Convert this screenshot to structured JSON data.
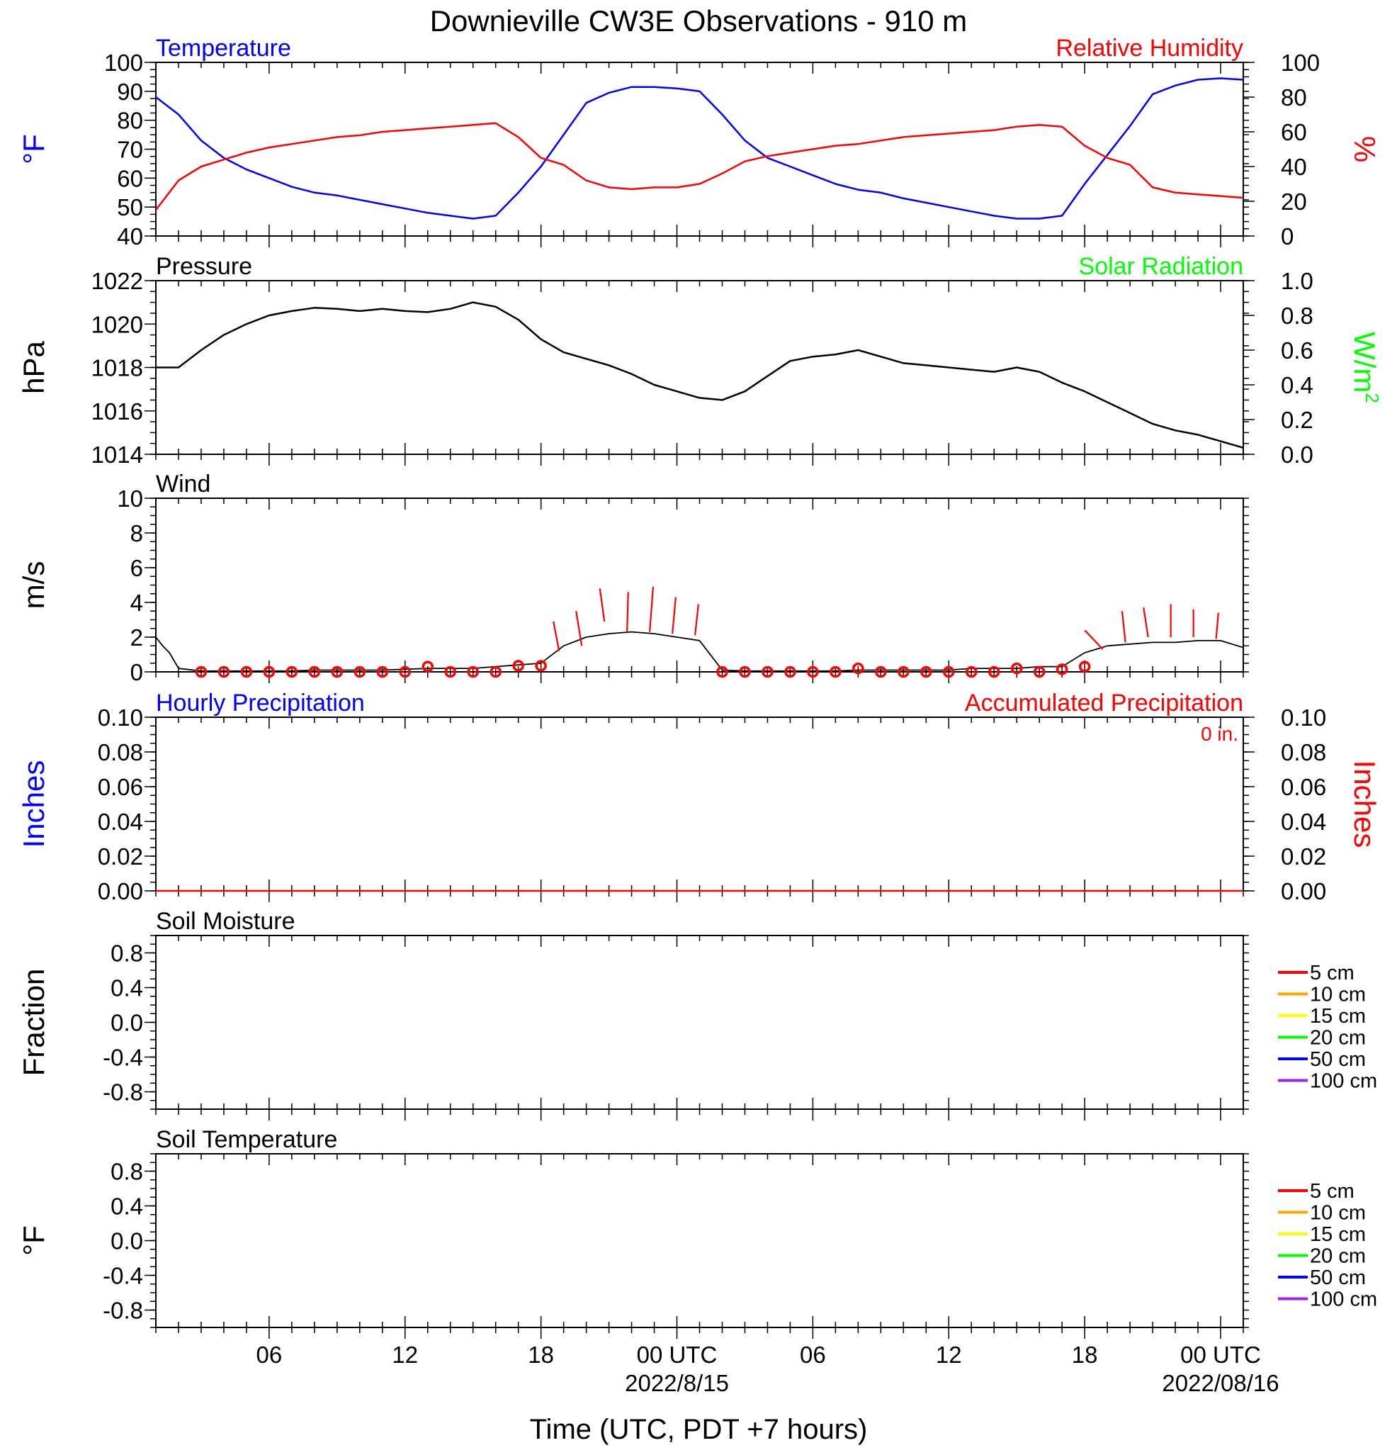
{
  "title": "Downieville CW3E Observations - 910 m",
  "x_axis": {
    "label": "Time (UTC, PDT +7 hours)",
    "range_hours": [
      0,
      48
    ],
    "ticks": [
      {
        "h": 5,
        "label": "06"
      },
      {
        "h": 11,
        "label": "12"
      },
      {
        "h": 17,
        "label": "18"
      },
      {
        "h": 23,
        "label": "00 UTC",
        "sub": "2022/8/15"
      },
      {
        "h": 29,
        "label": "06"
      },
      {
        "h": 35,
        "label": "12"
      },
      {
        "h": 41,
        "label": "18"
      },
      {
        "h": 47,
        "label": "00 UTC",
        "sub": "2022/08/16"
      }
    ]
  },
  "colors": {
    "temperature": "#0000ff",
    "humidity": "#ff0000",
    "solar": "#00ff00",
    "black": "#000000",
    "precip": "#ff0000"
  },
  "chart_data": [
    {
      "type": "line",
      "name": "temperature-humidity",
      "left_title": "Temperature",
      "right_title": "Relative Humidity",
      "ylabel_left": "°F",
      "ylabel_right": "%",
      "ylim_left": [
        40,
        100
      ],
      "ylim_right": [
        0,
        100
      ],
      "yticks_left": [
        "40",
        "50",
        "60",
        "70",
        "80",
        "90",
        "100"
      ],
      "yticks_right": [
        "0",
        "20",
        "40",
        "60",
        "80",
        "100"
      ],
      "series": [
        {
          "axis": "left",
          "color": "#0000ff",
          "x": [
            0,
            1,
            2,
            3,
            4,
            5,
            6,
            7,
            8,
            9,
            10,
            11,
            12,
            13,
            14,
            15,
            16,
            17,
            18,
            19,
            20,
            21,
            22,
            23,
            24,
            25,
            26,
            27,
            28,
            29,
            30,
            31,
            32,
            33,
            34,
            35,
            36,
            37,
            38,
            39,
            40,
            41,
            42,
            43,
            44,
            45,
            46,
            47,
            48
          ],
          "values": [
            88,
            82,
            73,
            67,
            63,
            60,
            57,
            55,
            54,
            52.5,
            51,
            49.5,
            48,
            47,
            46,
            47,
            55,
            64,
            75,
            86,
            89.5,
            91.5,
            91.5,
            91,
            90,
            82,
            73,
            67,
            64,
            61,
            58,
            56,
            55,
            53,
            51.5,
            50,
            48.5,
            47,
            46,
            46,
            47,
            58,
            68,
            78,
            89,
            92,
            94,
            94.5,
            94
          ]
        },
        {
          "axis": "right",
          "color": "#ff0000",
          "x": [
            0,
            1,
            2,
            3,
            4,
            5,
            6,
            7,
            8,
            9,
            10,
            11,
            12,
            13,
            14,
            15,
            16,
            17,
            18,
            19,
            20,
            21,
            22,
            23,
            24,
            25,
            26,
            27,
            28,
            29,
            30,
            31,
            32,
            33,
            34,
            35,
            36,
            37,
            38,
            39,
            40,
            41,
            42,
            43,
            44,
            45,
            46,
            47,
            48
          ],
          "values": [
            15,
            32,
            40,
            44,
            48,
            51,
            53,
            55,
            57,
            58,
            60,
            61,
            62,
            63,
            64,
            65,
            57,
            45,
            41,
            32,
            28,
            27,
            28,
            28,
            30,
            36,
            43,
            46,
            48,
            50,
            52,
            53,
            55,
            57,
            58,
            59,
            60,
            61,
            63,
            64,
            63,
            52,
            45,
            41,
            28,
            25,
            24,
            23,
            22
          ]
        }
      ]
    },
    {
      "type": "line",
      "name": "pressure-solar",
      "left_title": "Pressure",
      "right_title": "Solar Radiation",
      "ylabel_left": "hPa",
      "ylabel_right": "W/m",
      "ylabel_right_sup": "2",
      "ylim_left": [
        1014,
        1022
      ],
      "ylim_right": [
        0,
        1
      ],
      "yticks_left": [
        "1014",
        "1016",
        "1018",
        "1020",
        "1022"
      ],
      "yticks_right": [
        "0.0",
        "0.2",
        "0.4",
        "0.6",
        "0.8",
        "1.0"
      ],
      "series": [
        {
          "axis": "left",
          "color": "#000000",
          "x": [
            0,
            1,
            2,
            3,
            4,
            5,
            6,
            7,
            8,
            9,
            10,
            11,
            12,
            13,
            14,
            15,
            16,
            17,
            18,
            19,
            20,
            21,
            22,
            23,
            24,
            25,
            26,
            27,
            28,
            29,
            30,
            31,
            32,
            33,
            34,
            35,
            36,
            37,
            38,
            39,
            40,
            41,
            42,
            43,
            44,
            45,
            46,
            47,
            48
          ],
          "values": [
            1018,
            1018,
            1018.8,
            1019.5,
            1020,
            1020.4,
            1020.6,
            1020.75,
            1020.7,
            1020.6,
            1020.7,
            1020.6,
            1020.55,
            1020.7,
            1021,
            1020.8,
            1020.2,
            1019.3,
            1018.7,
            1018.4,
            1018.1,
            1017.7,
            1017.2,
            1016.9,
            1016.6,
            1016.5,
            1016.9,
            1017.6,
            1018.3,
            1018.5,
            1018.6,
            1018.8,
            1018.5,
            1018.2,
            1018.1,
            1018.0,
            1017.9,
            1017.8,
            1018.0,
            1017.8,
            1017.3,
            1016.9,
            1016.4,
            1015.9,
            1015.4,
            1015.1,
            1014.9,
            1014.6,
            1014.3
          ]
        }
      ]
    },
    {
      "type": "line",
      "name": "wind",
      "left_title": "Wind",
      "ylabel_left": "m/s",
      "ylim_left": [
        0,
        10
      ],
      "yticks_left": [
        "0",
        "2",
        "4",
        "6",
        "8",
        "10"
      ],
      "series": [
        {
          "axis": "left",
          "color": "#000000",
          "x": [
            0,
            0.3,
            0.6,
            1,
            2,
            3,
            4,
            5,
            6,
            7,
            8,
            9,
            10,
            11,
            12,
            13,
            14,
            15,
            16,
            17,
            18,
            19,
            20,
            21,
            22,
            23,
            24,
            25,
            26,
            27,
            28,
            29,
            30,
            31,
            32,
            33,
            34,
            35,
            36,
            37,
            38,
            39,
            40,
            41,
            42,
            43,
            44,
            45,
            46,
            47,
            48
          ],
          "values": [
            2.0,
            1.5,
            1.1,
            0.2,
            0.05,
            0.05,
            0.05,
            0.05,
            0.05,
            0.1,
            0.1,
            0.1,
            0.1,
            0.15,
            0.2,
            0.2,
            0.2,
            0.3,
            0.4,
            0.5,
            1.5,
            2.0,
            2.2,
            2.3,
            2.2,
            2.0,
            1.8,
            0.1,
            0.05,
            0.05,
            0.05,
            0.05,
            0.05,
            0.1,
            0.1,
            0.1,
            0.1,
            0.1,
            0.2,
            0.2,
            0.2,
            0.3,
            0.3,
            1.1,
            1.5,
            1.6,
            1.7,
            1.7,
            1.8,
            1.8,
            1.4
          ]
        },
        {
          "axis": "left",
          "color": "#ff0000",
          "kind": "markers",
          "x": [
            2,
            3,
            4,
            5,
            6,
            7,
            8,
            9,
            10,
            11,
            12,
            13,
            14,
            15,
            16,
            17,
            25,
            26,
            27,
            28,
            29,
            30,
            31,
            32,
            33,
            34,
            35,
            36,
            37,
            38,
            39,
            40,
            41
          ],
          "values": [
            0,
            0,
            0,
            0,
            0,
            0,
            0,
            0,
            0,
            0,
            0.3,
            0,
            0,
            0,
            0.35,
            0.35,
            0,
            0,
            0,
            0,
            0,
            0,
            0.2,
            0,
            0,
            0,
            0,
            0,
            0,
            0.2,
            0,
            0.15,
            0.3
          ]
        }
      ],
      "barbs": [
        {
          "x": 17.8,
          "y": 1.2,
          "dx": -0.25,
          "dy": 1.7
        },
        {
          "x": 18.8,
          "y": 1.5,
          "dx": -0.25,
          "dy": 2.0
        },
        {
          "x": 19.8,
          "y": 2.9,
          "dx": -0.2,
          "dy": 1.9
        },
        {
          "x": 20.8,
          "y": 2.3,
          "dx": 0.05,
          "dy": 2.3
        },
        {
          "x": 21.8,
          "y": 2.3,
          "dx": 0.15,
          "dy": 2.6
        },
        {
          "x": 22.8,
          "y": 2.2,
          "dx": 0.15,
          "dy": 2.1
        },
        {
          "x": 23.8,
          "y": 2.1,
          "dx": 0.15,
          "dy": 1.8
        },
        {
          "x": 41.8,
          "y": 1.3,
          "dx": -0.8,
          "dy": 1.1
        },
        {
          "x": 42.8,
          "y": 1.7,
          "dx": -0.15,
          "dy": 1.8
        },
        {
          "x": 43.8,
          "y": 2.0,
          "dx": -0.2,
          "dy": 1.7
        },
        {
          "x": 44.8,
          "y": 2.0,
          "dx": 0.0,
          "dy": 1.9
        },
        {
          "x": 45.8,
          "y": 2.0,
          "dx": 0.0,
          "dy": 1.6
        },
        {
          "x": 46.8,
          "y": 1.9,
          "dx": 0.1,
          "dy": 1.5
        }
      ]
    },
    {
      "type": "line",
      "name": "precipitation",
      "left_title": "Hourly Precipitation",
      "right_title": "Accumulated Precipitation",
      "annotation": "0 in.",
      "ylabel_left": "Inches",
      "ylabel_right": "Inches",
      "ylim_left": [
        0,
        0.1
      ],
      "ylim_right": [
        0,
        0.1
      ],
      "yticks_left": [
        "0.00",
        "0.02",
        "0.04",
        "0.06",
        "0.08",
        "0.10"
      ],
      "yticks_right": [
        "0.00",
        "0.02",
        "0.04",
        "0.06",
        "0.08",
        "0.10"
      ],
      "series": [
        {
          "axis": "left",
          "color": "#ff0000",
          "x": [
            0,
            48
          ],
          "values": [
            0,
            0
          ]
        }
      ]
    },
    {
      "type": "line",
      "name": "soil-moisture",
      "left_title": "Soil Moisture",
      "ylabel_left": "Fraction",
      "ylim_left": [
        -1,
        1
      ],
      "yticks_left": [
        "-0.8",
        "-0.4",
        "0.0",
        "0.4",
        "0.8"
      ],
      "legend": [
        {
          "label": "5 cm",
          "color": "#ff0000"
        },
        {
          "label": "10 cm",
          "color": "#ffa500"
        },
        {
          "label": "15 cm",
          "color": "#ffff00"
        },
        {
          "label": "20 cm",
          "color": "#00ff00"
        },
        {
          "label": "50 cm",
          "color": "#0000ff"
        },
        {
          "label": "100 cm",
          "color": "#a020f0"
        }
      ]
    },
    {
      "type": "line",
      "name": "soil-temperature",
      "left_title": "Soil Temperature",
      "ylabel_left": "°F",
      "ylim_left": [
        -1,
        1
      ],
      "yticks_left": [
        "-0.8",
        "-0.4",
        "0.0",
        "0.4",
        "0.8"
      ],
      "legend": [
        {
          "label": "5 cm",
          "color": "#ff0000"
        },
        {
          "label": "10 cm",
          "color": "#ffa500"
        },
        {
          "label": "15 cm",
          "color": "#ffff00"
        },
        {
          "label": "20 cm",
          "color": "#00ff00"
        },
        {
          "label": "50 cm",
          "color": "#0000ff"
        },
        {
          "label": "100 cm",
          "color": "#a020f0"
        }
      ]
    }
  ]
}
